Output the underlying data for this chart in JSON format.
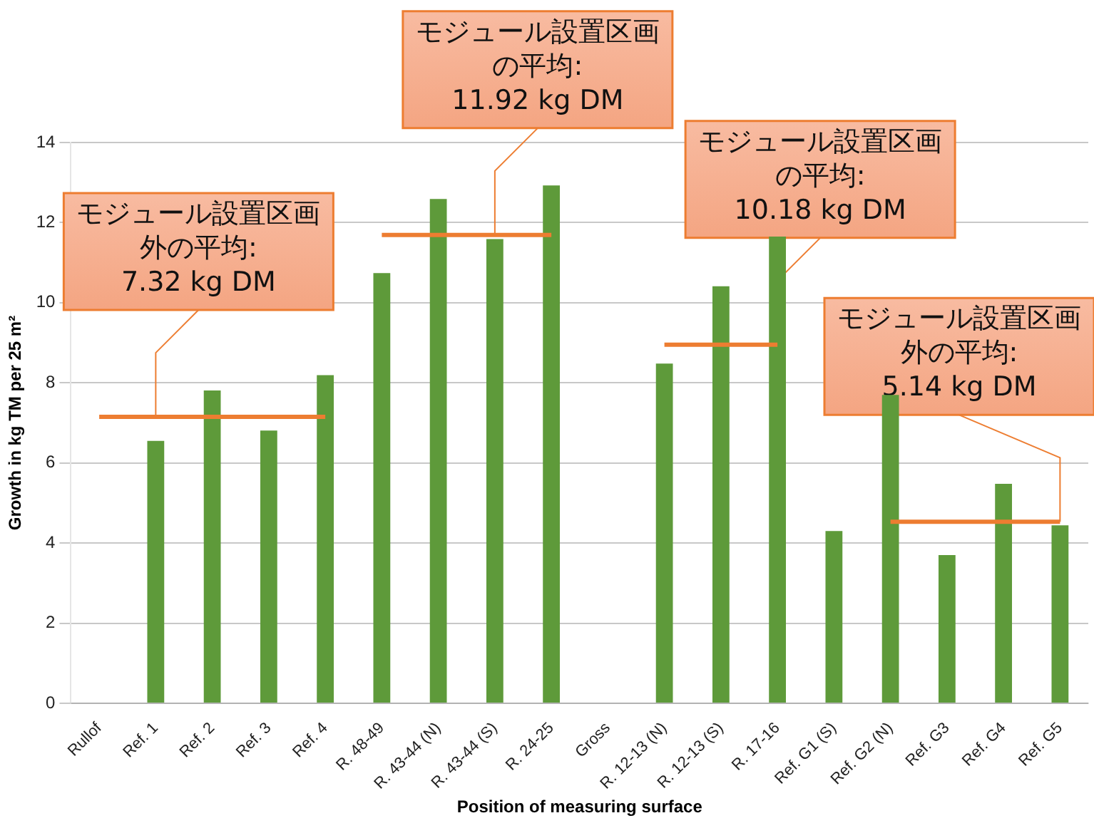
{
  "chart_data": {
    "type": "bar",
    "xlabel": "Position of measuring surface",
    "ylabel": "Growth in kg TM per 25 m²",
    "categories": [
      "Rullof",
      "Ref. 1",
      "Ref. 2",
      "Ref. 3",
      "Ref. 4",
      "R. 48-49",
      "R. 43-44 (N)",
      "R. 43-44 (S)",
      "R. 24-25",
      "Gross",
      "R. 12-13 (N)",
      "R. 12-13 (S)",
      "R. 17-16",
      "Ref. G1 (S)",
      "Ref. G2 (N)",
      "Ref. G3",
      "Ref. G4",
      "Ref. G5"
    ],
    "series": [
      {
        "color": "#5e9a3a",
        "values": [
          null,
          6.55,
          7.81,
          6.81,
          8.19,
          10.74,
          12.59,
          11.59,
          12.93,
          null,
          8.48,
          10.41,
          11.65,
          4.3,
          7.7,
          3.7,
          5.48,
          4.44
        ]
      },
      {
        "type": "line",
        "color": "#ed7d31",
        "values": [
          7.15,
          7.15,
          7.15,
          7.15,
          7.15,
          null,
          null,
          null,
          null,
          null,
          null,
          null,
          null,
          null,
          null,
          null,
          null,
          null
        ]
      },
      {
        "type": "line",
        "color": "#ed7d31",
        "values": [
          null,
          null,
          null,
          null,
          null,
          11.69,
          11.69,
          11.69,
          11.69,
          null,
          null,
          null,
          null,
          null,
          null,
          null,
          null,
          null
        ]
      },
      {
        "type": "line",
        "color": "#ed7d31",
        "values": [
          null,
          null,
          null,
          null,
          null,
          null,
          null,
          null,
          null,
          null,
          8.95,
          8.95,
          8.95,
          null,
          null,
          null,
          null,
          null
        ]
      },
      {
        "type": "line",
        "color": "#ed7d31",
        "values": [
          null,
          null,
          null,
          null,
          null,
          null,
          null,
          null,
          null,
          null,
          null,
          null,
          null,
          null,
          4.53,
          4.53,
          4.53,
          4.53
        ]
      }
    ],
    "ylim": [
      0,
      14
    ],
    "yticks": [
      0,
      2,
      4,
      6,
      8,
      10,
      12,
      14
    ],
    "grid": "y",
    "legend": false,
    "marker": "none",
    "annotations": [
      {
        "text": "モジュール設置区画外の平均: 7.32 kg DM",
        "x": "Ref. 1",
        "y": 7.15
      },
      {
        "text": "モジュール設置区画の平均: 11.92 kg DM",
        "x": "R. 43-44 (S)",
        "y": 11.69
      },
      {
        "text": "モジュール設置区画の平均: 10.18 kg DM",
        "x": "R. 17-16",
        "y": 8.95
      },
      {
        "text": "モジュール設置区画外の平均: 5.14 kg DM",
        "x": "Ref. G5",
        "y": 4.53
      }
    ]
  }
}
